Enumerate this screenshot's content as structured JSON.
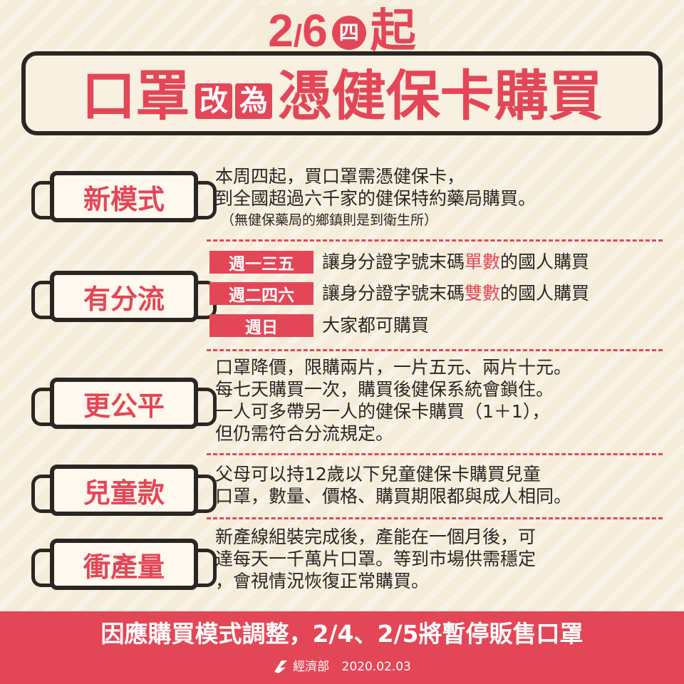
{
  "header": {
    "date_month": "2",
    "date_slash": "/",
    "date_day": "6",
    "weekday": "四",
    "date_suffix": "起",
    "headline_part1": "口罩",
    "headline_box1": "改",
    "headline_box2": "為",
    "headline_part2": "憑健保卡購買"
  },
  "sections": {
    "new_mode": {
      "tag": "新模式",
      "line1": "本周四起，買口罩需憑健保卡，",
      "line2": "到全國超過六千家的健保特約藥局購買。",
      "note": "（無健保藥局的鄉鎮則是到衛生所）"
    },
    "split": {
      "tag": "有分流",
      "rows": [
        {
          "day": "週一三五",
          "pre": "讓身分證字號末碼",
          "hl": "單數",
          "post": "的國人購買"
        },
        {
          "day": "週二四六",
          "pre": "讓身分證字號末碼",
          "hl": "雙數",
          "post": "的國人購買"
        },
        {
          "day": "週日",
          "pre": "大家都可購買",
          "hl": "",
          "post": ""
        }
      ]
    },
    "fair": {
      "tag": "更公平",
      "line1": "口罩降價，限購兩片，一片五元、兩片十元。",
      "line2": "每七天購買一次，購買後健保系統會鎖住。",
      "line3": "一人可多帶另一人的健保卡購買（1＋1），",
      "line4": "但仍需符合分流規定。"
    },
    "kids": {
      "tag": "兒童款",
      "line1": "父母可以持12歲以下兒童健保卡購買兒童",
      "line2": "口罩，數量、價格、購買期限都與成人相同。"
    },
    "output": {
      "tag": "衝產量",
      "line1": "新產線組裝完成後，產能在一個月後，可",
      "line2": "達每天一千萬片口罩。等到市場供需穩定",
      "line3": "，會視情況恢復正常購買。"
    }
  },
  "footer": {
    "notice": "因應購買模式調整，2/4、2/5將暫停販售口罩",
    "agency": "經濟部",
    "date": "2020.02.03"
  },
  "colors": {
    "accent": "#e34757",
    "ink": "#2a2623",
    "background": "#f5ecd9"
  }
}
